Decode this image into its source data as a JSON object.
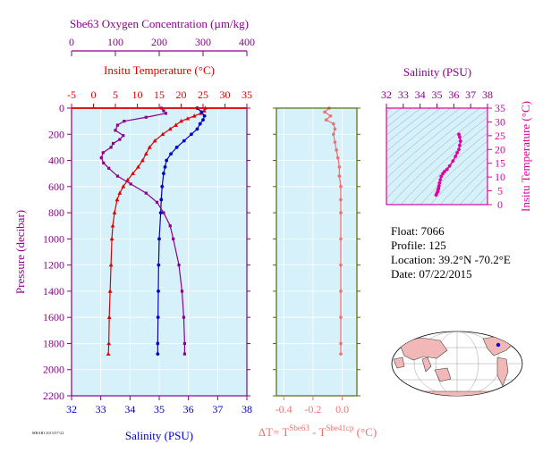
{
  "colors": {
    "oxygen": "#8b008b",
    "temperature": "#e00000",
    "salinity": "#0000cc",
    "delta": "#f07070",
    "ts": "#e000a0",
    "panel_bg": "#d6f1fa",
    "delta_axis": "#556b00"
  },
  "info": {
    "float": "Float:  7066",
    "profile": "Profile:  125",
    "location": "Location:  39.2°N  -70.2°E",
    "date": "Date:  07/22/2015"
  },
  "footer_code": "MBARI 2015/07/22",
  "chart_data": [
    {
      "type": "line",
      "name": "profiles",
      "ylabel": "Pressure (decibar)",
      "ylim": [
        2200,
        0
      ],
      "yticks": [
        0,
        200,
        400,
        600,
        800,
        1000,
        1200,
        1400,
        1600,
        1800,
        2000,
        2200
      ],
      "axes": {
        "oxygen": {
          "label": "Sbe63 Oxygen Concentration (µm/kg)",
          "lim": [
            0,
            400
          ],
          "ticks": [
            0,
            100,
            200,
            300,
            400
          ]
        },
        "temperature": {
          "label": "Insitu Temperature (°C)",
          "lim": [
            -5,
            35
          ],
          "ticks": [
            -5,
            0,
            5,
            10,
            15,
            20,
            25,
            30,
            35
          ]
        },
        "salinity": {
          "label": "Salinity (PSU)",
          "lim": [
            32,
            38
          ],
          "ticks": [
            32,
            33,
            34,
            35,
            36,
            37,
            38
          ]
        }
      },
      "series": [
        {
          "name": "Insitu Temperature",
          "axis": "temperature",
          "points": [
            [
              0,
              25.5
            ],
            [
              20,
              25.3
            ],
            [
              40,
              24.5
            ],
            [
              60,
              23.0
            ],
            [
              80,
              21.5
            ],
            [
              100,
              20.0
            ],
            [
              130,
              18.8
            ],
            [
              160,
              17.5
            ],
            [
              200,
              15.8
            ],
            [
              250,
              14.0
            ],
            [
              300,
              12.8
            ],
            [
              350,
              12.0
            ],
            [
              400,
              11.2
            ],
            [
              450,
              10.2
            ],
            [
              500,
              9.0
            ],
            [
              550,
              7.8
            ],
            [
              600,
              6.8
            ],
            [
              650,
              6.0
            ],
            [
              700,
              5.4
            ],
            [
              800,
              4.8
            ],
            [
              900,
              4.4
            ],
            [
              1000,
              4.2
            ],
            [
              1200,
              4.0
            ],
            [
              1400,
              3.8
            ],
            [
              1600,
              3.6
            ],
            [
              1800,
              3.5
            ],
            [
              1880,
              3.4
            ]
          ]
        },
        {
          "name": "Salinity",
          "axis": "salinity",
          "points": [
            [
              0,
              36.3
            ],
            [
              30,
              36.45
            ],
            [
              60,
              36.55
            ],
            [
              90,
              36.5
            ],
            [
              120,
              36.4
            ],
            [
              160,
              36.3
            ],
            [
              200,
              36.1
            ],
            [
              250,
              35.85
            ],
            [
              300,
              35.6
            ],
            [
              350,
              35.4
            ],
            [
              400,
              35.25
            ],
            [
              450,
              35.2
            ],
            [
              500,
              35.15
            ],
            [
              600,
              35.1
            ],
            [
              700,
              35.07
            ],
            [
              800,
              35.05
            ],
            [
              1000,
              35.0
            ],
            [
              1200,
              34.98
            ],
            [
              1400,
              34.97
            ],
            [
              1600,
              34.96
            ],
            [
              1800,
              34.95
            ],
            [
              1880,
              34.95
            ]
          ]
        },
        {
          "name": "Sbe63 Oxygen Concentration",
          "axis": "oxygen",
          "points": [
            [
              0,
              205
            ],
            [
              20,
              210
            ],
            [
              40,
              215
            ],
            [
              70,
              170
            ],
            [
              100,
              120
            ],
            [
              130,
              105
            ],
            [
              170,
              100
            ],
            [
              210,
              118
            ],
            [
              240,
              110
            ],
            [
              270,
              95
            ],
            [
              300,
              90
            ],
            [
              340,
              72
            ],
            [
              380,
              68
            ],
            [
              420,
              73
            ],
            [
              460,
              85
            ],
            [
              520,
              105
            ],
            [
              580,
              135
            ],
            [
              650,
              170
            ],
            [
              720,
              195
            ],
            [
              800,
              210
            ],
            [
              900,
              225
            ],
            [
              1000,
              232
            ],
            [
              1200,
              245
            ],
            [
              1400,
              252
            ],
            [
              1600,
              256
            ],
            [
              1800,
              258
            ],
            [
              1880,
              258
            ]
          ]
        }
      ]
    },
    {
      "type": "line",
      "name": "delta-t",
      "xlabel": "ΔT= T",
      "xlabel_sup1": "Sbe63",
      "xlabel_mid": " - T",
      "xlabel_sup2": "Sbe41cp",
      "xlabel_tail": " (°C)",
      "xlim": [
        -0.45,
        0.1
      ],
      "xticks": [
        -0.4,
        -0.2,
        0.0
      ],
      "xticklabels": [
        "-0.4",
        "-0.2",
        "0.0"
      ],
      "ylim": [
        2200,
        0
      ],
      "points": [
        [
          0,
          -0.09
        ],
        [
          30,
          -0.12
        ],
        [
          60,
          -0.08
        ],
        [
          90,
          -0.11
        ],
        [
          120,
          -0.06
        ],
        [
          160,
          -0.05
        ],
        [
          200,
          -0.06
        ],
        [
          260,
          -0.05
        ],
        [
          320,
          -0.04
        ],
        [
          380,
          -0.03
        ],
        [
          450,
          -0.02
        ],
        [
          520,
          -0.02
        ],
        [
          600,
          -0.01
        ],
        [
          700,
          -0.01
        ],
        [
          800,
          -0.01
        ],
        [
          1000,
          -0.01
        ],
        [
          1200,
          -0.01
        ],
        [
          1400,
          -0.01
        ],
        [
          1600,
          -0.01
        ],
        [
          1800,
          -0.01
        ],
        [
          1880,
          -0.01
        ]
      ]
    },
    {
      "type": "scatter",
      "name": "t-s",
      "xlabel": "Salinity (PSU)",
      "ylabel": "Insitu Temperature (°C)",
      "xlim": [
        32,
        38
      ],
      "ylim": [
        0,
        35
      ],
      "xticks": [
        32,
        33,
        34,
        35,
        36,
        37,
        38
      ],
      "yticks": [
        0,
        5,
        10,
        15,
        20,
        25,
        30,
        35
      ],
      "points": [
        [
          34.95,
          3.5
        ],
        [
          35.0,
          4.2
        ],
        [
          35.05,
          4.8
        ],
        [
          35.07,
          5.4
        ],
        [
          35.1,
          6.0
        ],
        [
          35.12,
          6.8
        ],
        [
          35.15,
          7.8
        ],
        [
          35.2,
          9.0
        ],
        [
          35.25,
          10.2
        ],
        [
          35.35,
          11.2
        ],
        [
          35.45,
          12.0
        ],
        [
          35.6,
          12.8
        ],
        [
          35.75,
          14.0
        ],
        [
          35.95,
          15.8
        ],
        [
          36.1,
          17.5
        ],
        [
          36.2,
          18.8
        ],
        [
          36.3,
          20.0
        ],
        [
          36.35,
          21.5
        ],
        [
          36.4,
          23.0
        ],
        [
          36.35,
          24.5
        ],
        [
          36.3,
          25.5
        ]
      ]
    }
  ]
}
